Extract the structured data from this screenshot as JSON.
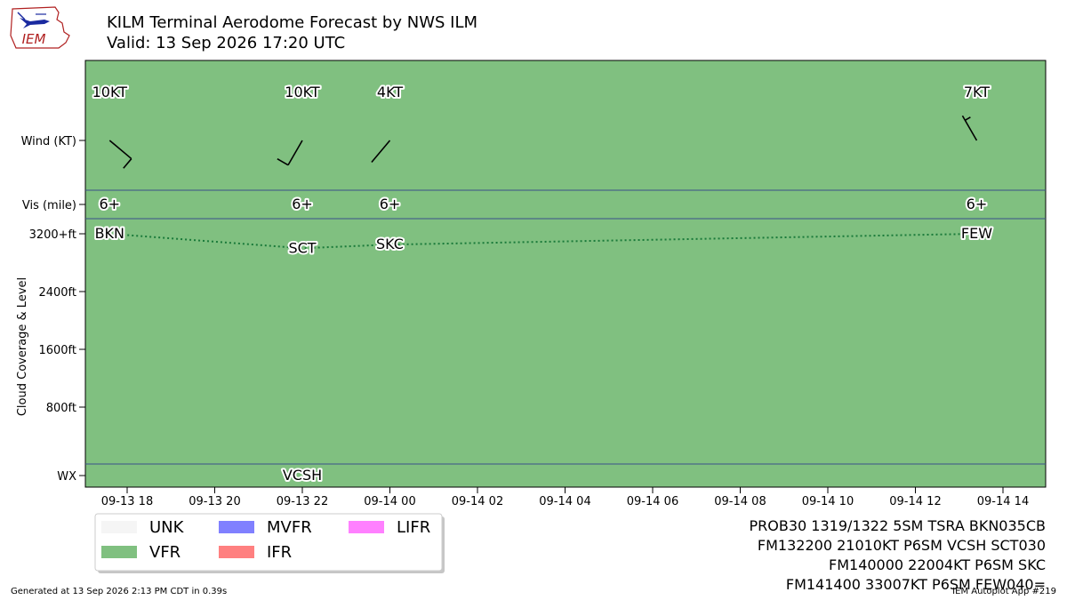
{
  "header": {
    "logo_text": "IEM",
    "title": "KILM Terminal Aerodome Forecast by NWS ILM",
    "valid": "Valid: 13 Sep 2026 17:20 UTC"
  },
  "colors": {
    "VFR": "#80c080",
    "UNK": "#f5f5f5",
    "MVFR": "#8080ff",
    "IFR": "#ff8080",
    "LIFR": "#ff80ff",
    "cloud_line": "#1a7a3a",
    "divider": "#3a4f8a"
  },
  "chart_data": {
    "type": "line",
    "row_labels": {
      "wind": "Wind (KT)",
      "vis": "Vis (mile)",
      "wx": "WX"
    },
    "ylabel": "Cloud Coverage & Level",
    "cloud_ylim": [
      0,
      3200
    ],
    "cloud_ticks": [
      {
        "value": 3200,
        "label": "3200+ft"
      },
      {
        "value": 2400,
        "label": "2400ft"
      },
      {
        "value": 1600,
        "label": "1600ft"
      },
      {
        "value": 800,
        "label": "800ft"
      }
    ],
    "xlim_hours": [
      16.6,
      38.0
    ],
    "x_ticks": [
      {
        "hour": 18,
        "label": "09-13 18"
      },
      {
        "hour": 20,
        "label": "09-13 20"
      },
      {
        "hour": 22,
        "label": "09-13 22"
      },
      {
        "hour": 24,
        "label": "09-14 00"
      },
      {
        "hour": 26,
        "label": "09-14 02"
      },
      {
        "hour": 28,
        "label": "09-14 04"
      },
      {
        "hour": 30,
        "label": "09-14 06"
      },
      {
        "hour": 32,
        "label": "09-14 08"
      },
      {
        "hour": 34,
        "label": "09-14 10"
      },
      {
        "hour": 36,
        "label": "09-14 12"
      },
      {
        "hour": 38,
        "label": "09-14 14"
      }
    ],
    "forecasts": [
      {
        "hour": 17.6,
        "wind_dir": 130,
        "wind_speed": 10,
        "wind_label": "10KT",
        "vis_label": "6+",
        "cloud_label": "BKN",
        "cloud_ft": 3200
      },
      {
        "hour": 22.0,
        "wind_dir": 210,
        "wind_speed": 10,
        "wind_label": "10KT",
        "vis_label": "6+",
        "cloud_label": "SCT",
        "cloud_ft": 3000
      },
      {
        "hour": 24.0,
        "wind_dir": 220,
        "wind_speed": 4,
        "wind_label": "4KT",
        "vis_label": "6+",
        "cloud_label": "SKC",
        "cloud_ft": 3050
      },
      {
        "hour": 37.4,
        "wind_dir": 330,
        "wind_speed": 7,
        "wind_label": "7KT",
        "vis_label": "6+",
        "cloud_label": "FEW",
        "cloud_ft": 3200
      }
    ],
    "wx": [
      {
        "hour": 22.0,
        "label": "VCSH"
      }
    ],
    "legend": {
      "placement": "bottom-left",
      "entries": [
        {
          "name": "UNK",
          "color": "#f5f5f5"
        },
        {
          "name": "VFR",
          "color": "#80c080"
        },
        {
          "name": "MVFR",
          "color": "#8080ff"
        },
        {
          "name": "IFR",
          "color": "#ff8080"
        },
        {
          "name": "LIFR",
          "color": "#ff80ff"
        }
      ]
    },
    "taf_text": [
      "PROB30 1319/1322 5SM TSRA BKN035CB",
      "FM132200 21010KT P6SM VCSH SCT030",
      "FM140000 22004KT P6SM SKC",
      "FM141400 33007KT P6SM FEW040="
    ]
  },
  "footer": {
    "generated": "Generated at 13 Sep 2026 2:13 PM CDT in 0.39s",
    "app": "IEM Autoplot App #219"
  }
}
